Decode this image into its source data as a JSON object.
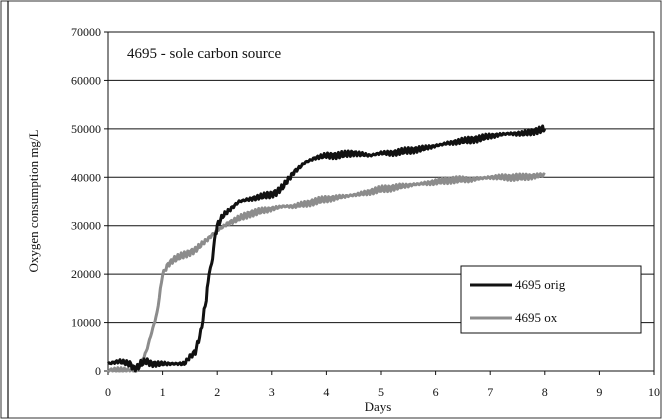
{
  "chart_data": {
    "type": "line",
    "title": "4695 - sole carbon source",
    "xlabel": "Days",
    "ylabel": "Oxygen consumption mg/L",
    "xlim": [
      0,
      10
    ],
    "ylim": [
      0,
      70000
    ],
    "xticks": [
      "0",
      "1",
      "2",
      "3",
      "4",
      "5",
      "6",
      "7",
      "8",
      "9",
      "10"
    ],
    "yticks": [
      "0",
      "10000",
      "20000",
      "30000",
      "40000",
      "50000",
      "60000",
      "70000"
    ],
    "grid": "horizontal",
    "legend_position": "bottom-right",
    "colors": {
      "series1": "#111111",
      "series2": "#8c8c8c"
    },
    "series": [
      {
        "name": "4695 orig",
        "x": [
          0,
          0.2,
          0.4,
          0.5,
          0.6,
          0.7,
          0.8,
          1.0,
          1.2,
          1.4,
          1.5,
          1.6,
          1.7,
          1.8,
          1.85,
          1.9,
          1.95,
          2.0,
          2.1,
          2.2,
          2.3,
          2.4,
          2.6,
          2.8,
          3.0,
          3.1,
          3.2,
          3.3,
          3.4,
          3.5,
          3.6,
          3.8,
          4.0,
          4.2,
          4.5,
          4.8,
          5.0,
          5.2,
          5.5,
          5.8,
          6.0,
          6.2,
          6.5,
          6.8,
          7.0,
          7.3,
          7.6,
          7.8,
          8.0
        ],
        "y": [
          1500,
          2000,
          1500,
          300,
          1500,
          2000,
          1500,
          1500,
          1500,
          1500,
          3000,
          4000,
          8000,
          15000,
          20000,
          22000,
          27000,
          30000,
          32000,
          33000,
          34000,
          35000,
          35500,
          36000,
          36500,
          37000,
          38000,
          39500,
          41000,
          42000,
          43000,
          44000,
          44500,
          44500,
          45000,
          44500,
          45000,
          45000,
          45500,
          46000,
          46500,
          47000,
          47500,
          48000,
          48500,
          49000,
          49000,
          49500,
          50000
        ]
      },
      {
        "name": "4695 ox",
        "x": [
          0,
          0.3,
          0.5,
          0.6,
          0.7,
          0.8,
          0.9,
          1.0,
          1.1,
          1.2,
          1.4,
          1.6,
          1.8,
          2.0,
          2.2,
          2.4,
          2.6,
          2.8,
          3.0,
          3.2,
          3.4,
          3.6,
          3.8,
          4.0,
          4.3,
          4.6,
          5.0,
          5.3,
          5.6,
          6.0,
          6.3,
          6.6,
          7.0,
          7.3,
          7.6,
          8.0
        ],
        "y": [
          0,
          0,
          0,
          1500,
          4000,
          8000,
          12000,
          20000,
          22000,
          23000,
          24000,
          25000,
          27000,
          29000,
          30500,
          31500,
          32500,
          33000,
          33500,
          34000,
          34000,
          34500,
          35000,
          35500,
          36000,
          36500,
          37500,
          38000,
          38500,
          39000,
          39500,
          39500,
          40000,
          40000,
          40000,
          40500
        ]
      }
    ]
  }
}
